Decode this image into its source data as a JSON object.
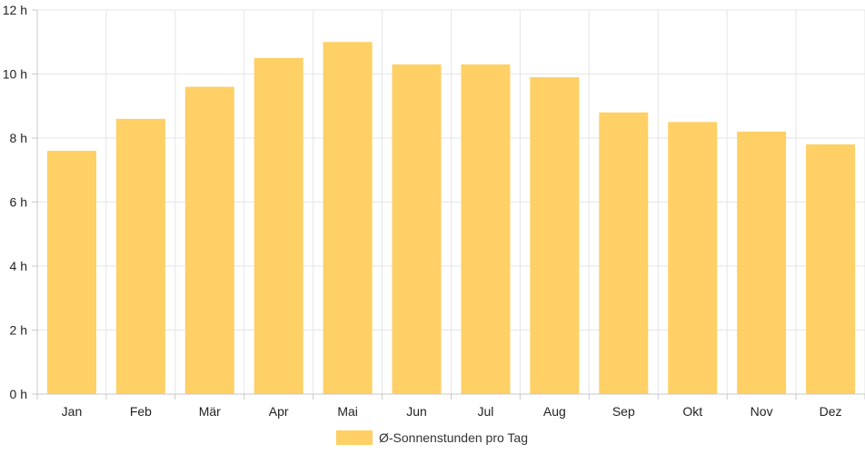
{
  "chart_data": {
    "type": "bar",
    "categories": [
      "Jan",
      "Feb",
      "Mär",
      "Apr",
      "Mai",
      "Jun",
      "Jul",
      "Aug",
      "Sep",
      "Okt",
      "Nov",
      "Dez"
    ],
    "series": [
      {
        "name": "Ø-Sonnenstunden pro Tag",
        "values": [
          7.6,
          8.6,
          9.6,
          10.5,
          11.0,
          10.3,
          10.3,
          9.9,
          8.8,
          8.5,
          8.2,
          7.8
        ]
      }
    ],
    "yticks": [
      "0 h",
      "2 h",
      "4 h",
      "6 h",
      "8 h",
      "10 h",
      "12 h"
    ],
    "ylim": [
      0,
      12
    ],
    "grid": true,
    "legend_position": "bottom",
    "colors": {
      "bar": "#fed065",
      "grid": "#e5e5e5",
      "axis": "#c8c8c8"
    }
  }
}
